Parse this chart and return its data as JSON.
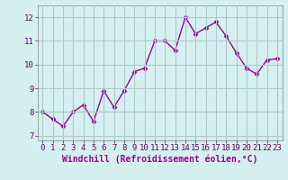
{
  "x": [
    0,
    1,
    2,
    3,
    4,
    5,
    6,
    7,
    8,
    9,
    10,
    11,
    12,
    13,
    14,
    15,
    16,
    17,
    18,
    19,
    20,
    21,
    22,
    23
  ],
  "y": [
    8.0,
    7.7,
    7.4,
    8.0,
    8.3,
    7.6,
    8.9,
    8.2,
    8.9,
    9.7,
    9.85,
    11.0,
    11.0,
    10.6,
    12.0,
    11.3,
    11.55,
    11.8,
    11.2,
    10.5,
    9.85,
    9.6,
    10.2,
    10.25
  ],
  "line_color": "#990099",
  "marker": "D",
  "marker_size": 2.5,
  "bg_color": "#d4f0f0",
  "grid_color": "#b0c8c8",
  "xlabel": "Windchill (Refroidissement éolien,°C)",
  "xlabel_color": "#990099",
  "xlabel_fontsize": 7,
  "tick_fontsize": 6.5,
  "xlim": [
    -0.5,
    23.5
  ],
  "ylim": [
    6.8,
    12.5
  ],
  "yticks": [
    7,
    8,
    9,
    10,
    11,
    12
  ],
  "xticks": [
    0,
    1,
    2,
    3,
    4,
    5,
    6,
    7,
    8,
    9,
    10,
    11,
    12,
    13,
    14,
    15,
    16,
    17,
    18,
    19,
    20,
    21,
    22,
    23
  ],
  "grid_alpha": 1.0,
  "linewidth": 1.0
}
